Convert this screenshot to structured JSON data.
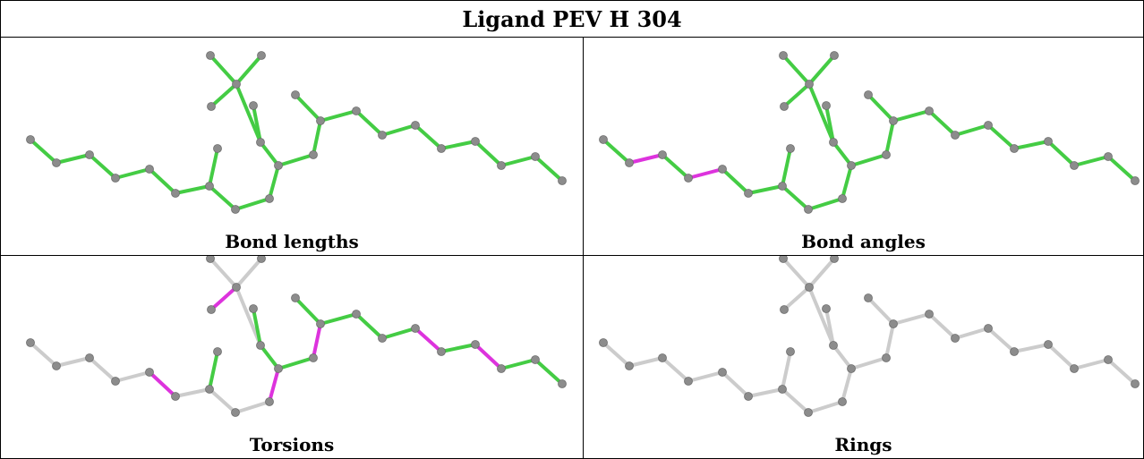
{
  "title": "Ligand PEV H 304",
  "colors": {
    "ok": "#44cc44",
    "outlier": "#dd33dd",
    "neutral": "#cccccc",
    "atom": "#8c8c8c"
  },
  "panels": [
    {
      "label": "Bond lengths",
      "highlight": []
    },
    {
      "label": "Bond angles",
      "highlight": [
        1,
        3
      ]
    },
    {
      "label": "Torsions",
      "highlight": [
        4,
        9,
        14,
        17,
        22,
        24
      ]
    },
    {
      "label": "Rings",
      "highlight": []
    }
  ]
}
